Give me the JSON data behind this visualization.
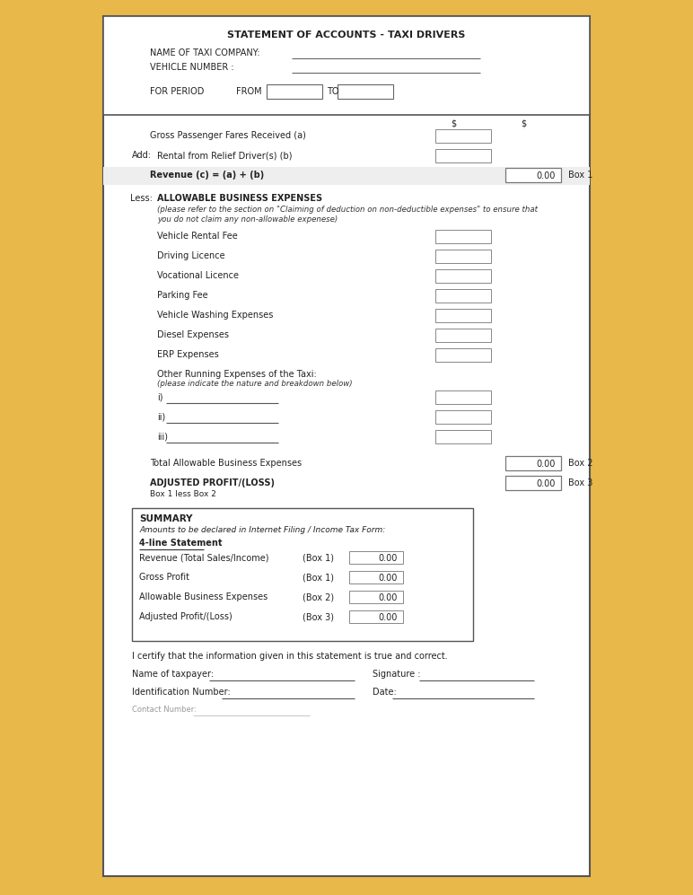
{
  "title": "STATEMENT OF ACCOUNTS - TAXI DRIVERS",
  "bg_outer": "#e8b84b",
  "border_color": "#444444",
  "text_color": "#222222",
  "header": {
    "name_label": "NAME OF TAXI COMPANY:",
    "vehicle_label": "VEHICLE NUMBER :",
    "period_label": "FOR PERIOD",
    "from_label": "FROM",
    "to_label": "TO"
  },
  "income": {
    "dollar1": "$",
    "dollar2": "$",
    "gross_fares": "Gross Passenger Fares Received (a)",
    "add_label": "Add:",
    "rental_label": "Rental from Relief Driver(s) (b)",
    "revenue_label": "Revenue (c) = (a) + (b)",
    "revenue_value": "0.00",
    "box1_label": "Box 1"
  },
  "expenses": {
    "less_label": "Less:",
    "title": "ALLOWABLE BUSINESS EXPENSES",
    "note1": "(please refer to the section on \"Claiming of deduction on non-deductible expenses\" to ensure that",
    "note2": "you do not claim any non-allowable expenese)",
    "items": [
      "Vehicle Rental Fee",
      "Driving Licence",
      "Vocational Licence",
      "Parking Fee",
      "Vehicle Washing Expenses",
      "Diesel Expenses",
      "ERP Expenses"
    ],
    "other_label": "Other Running Expenses of the Taxi:",
    "other_note": "(please indicate the nature and breakdown below)",
    "sub_items": [
      "i)",
      "ii)",
      "iii)"
    ],
    "total_label": "Total Allowable Business Expenses",
    "total_value": "0.00",
    "box2_label": "Box 2",
    "adj_label": "ADJUSTED PROFIT/(LOSS)",
    "adj_sub": "Box 1 less Box 2",
    "adj_value": "0.00",
    "box3_label": "Box 3"
  },
  "summary": {
    "title": "SUMMARY",
    "subtitle": "Amounts to be declared in Internet Filing / Income Tax Form:",
    "stmt_label": "4-line Statement",
    "rows": [
      {
        "label": "Revenue (Total Sales/Income)",
        "box": "(Box 1)",
        "value": "0.00"
      },
      {
        "label": "Gross Profit",
        "box": "(Box 1)",
        "value": "0.00"
      },
      {
        "label": "Allowable Business Expenses",
        "box": "(Box 2)",
        "value": "0.00"
      },
      {
        "label": "Adjusted Profit/(Loss)",
        "box": "(Box 3)",
        "value": "0.00"
      }
    ]
  },
  "footer": {
    "certify": "I certify that the information given in this statement is true and correct.",
    "taxpayer": "Name of taxpayer:",
    "id_num": "Identification Number:",
    "contact": "Contact Number:",
    "signature": "Signature :",
    "date": "Date:"
  }
}
